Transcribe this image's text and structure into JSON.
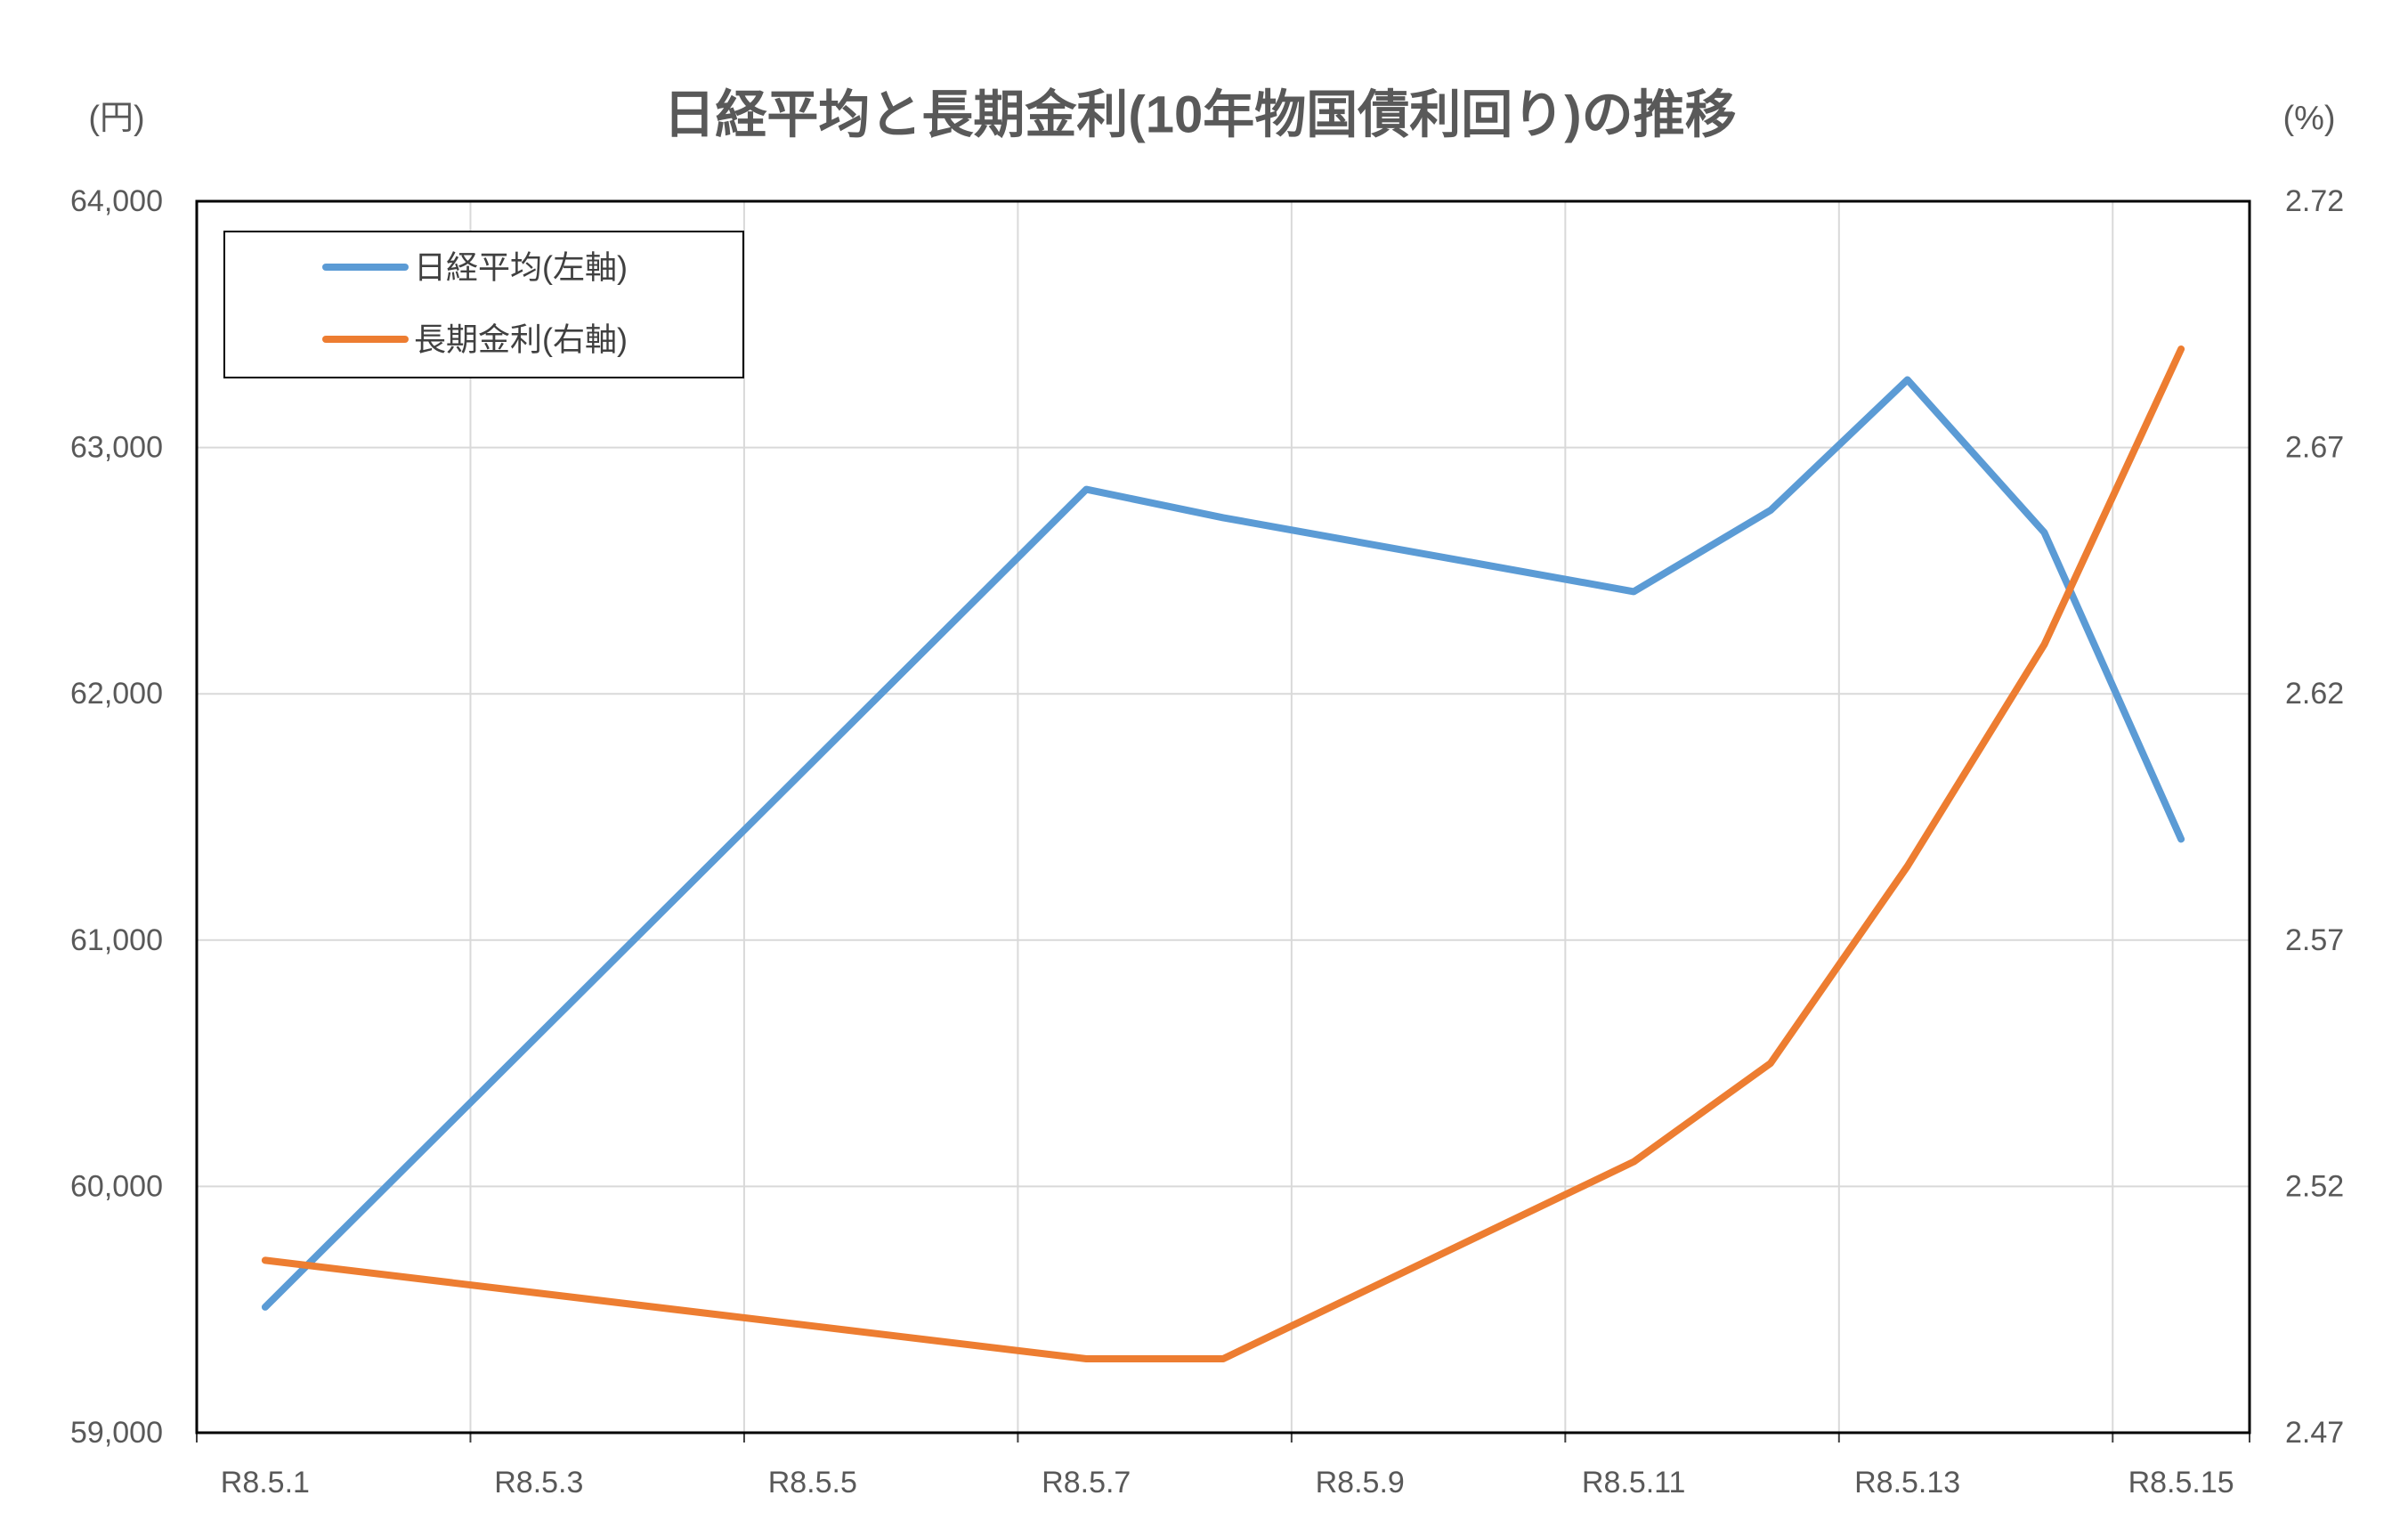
{
  "chart_data": {
    "type": "line",
    "title": "日経平均と長期金利(10年物国債利回り)の推移",
    "y_left_unit": "(円)",
    "y_right_unit": "(%)",
    "xlim": [
      "R8.5.1",
      "R8.5.15"
    ],
    "x_tick_labels": [
      "R8.5.1",
      "R8.5.3",
      "R8.5.5",
      "R8.5.7",
      "R8.5.9",
      "R8.5.11",
      "R8.5.13",
      "R8.5.15"
    ],
    "x": [
      "R8.5.1",
      "R8.5.7",
      "R8.5.8",
      "R8.5.11",
      "R8.5.12",
      "R8.5.13",
      "R8.5.14",
      "R8.5.15"
    ],
    "ylim_left": [
      59000,
      64000
    ],
    "ylim_right": [
      2.47,
      2.72
    ],
    "y_left_tick_labels": [
      "59,000",
      "60,000",
      "61,000",
      "62,000",
      "63,000",
      "64,000"
    ],
    "y_right_tick_labels": [
      "2.47",
      "2.52",
      "2.57",
      "2.62",
      "2.67",
      "2.72"
    ],
    "grid": true,
    "legend": "top-left",
    "series": [
      {
        "name": "日経平均(左軸)",
        "axis": "left",
        "color": "#5B9BD5",
        "values": [
          59510,
          62830,
          62715,
          62415,
          62745,
          63275,
          62655,
          61410
        ]
      },
      {
        "name": "長期金利(右軸)",
        "axis": "right",
        "color": "#ED7D31",
        "values": [
          2.505,
          2.485,
          2.485,
          2.525,
          2.545,
          2.585,
          2.63,
          2.69
        ]
      }
    ]
  }
}
